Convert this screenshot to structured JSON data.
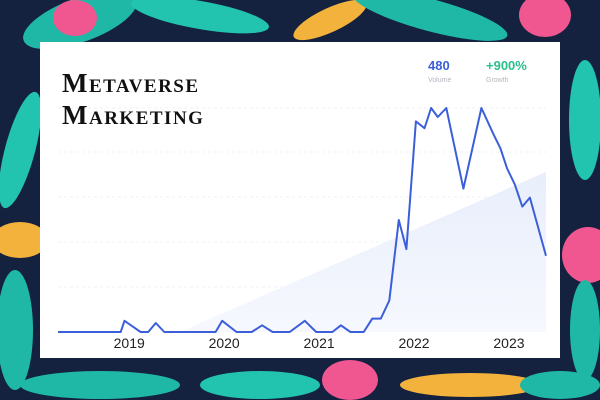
{
  "chart_data": {
    "type": "line",
    "title_lines": [
      "Metaverse",
      "Marketing"
    ],
    "stats": [
      {
        "value": "480",
        "label": "Volume",
        "color": "#3b5fd9"
      },
      {
        "value": "+900%",
        "label": "Growth",
        "color": "#2bbf8a"
      }
    ],
    "x": [
      2018.25,
      2018.91,
      2018.95,
      2019.12,
      2019.2,
      2019.28,
      2019.37,
      2019.91,
      2019.98,
      2020.13,
      2020.29,
      2020.4,
      2020.51,
      2020.69,
      2020.85,
      2020.97,
      2021.14,
      2021.23,
      2021.33,
      2021.47,
      2021.56,
      2021.65,
      2021.74,
      2021.84,
      2021.92,
      2022.02,
      2022.11,
      2022.18,
      2022.25,
      2022.34,
      2022.52,
      2022.71,
      2022.84,
      2022.91,
      2022.98,
      2023.06,
      2023.14,
      2023.22,
      2023.39
    ],
    "y": [
      0,
      0,
      5,
      0,
      0,
      4,
      0,
      0,
      5,
      0,
      0,
      3,
      0,
      0,
      5,
      0,
      0,
      3,
      0,
      0,
      6,
      6,
      14,
      50,
      37,
      94,
      91,
      100,
      96,
      100,
      64,
      100,
      88,
      82,
      73,
      66,
      56,
      60,
      34
    ],
    "color": "#3b5fd9",
    "xlim": [
      2018.25,
      2023.39
    ],
    "xticks": [
      2019,
      2020,
      2021,
      2022,
      2023
    ],
    "ylim": [
      0,
      100
    ]
  }
}
